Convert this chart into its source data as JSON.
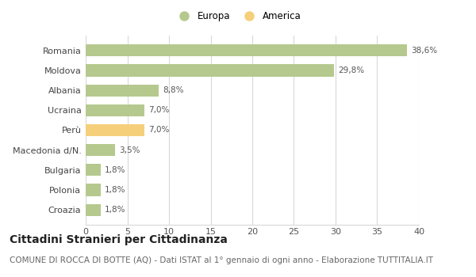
{
  "categories": [
    "Romania",
    "Moldova",
    "Albania",
    "Ucraina",
    "Perù",
    "Macedonia d/N.",
    "Bulgaria",
    "Polonia",
    "Croazia"
  ],
  "values": [
    38.6,
    29.8,
    8.8,
    7.0,
    7.0,
    3.5,
    1.8,
    1.8,
    1.8
  ],
  "colors": [
    "#b5c98e",
    "#b5c98e",
    "#b5c98e",
    "#b5c98e",
    "#f5cf7a",
    "#b5c98e",
    "#b5c98e",
    "#b5c98e",
    "#b5c98e"
  ],
  "labels": [
    "38,6%",
    "29,8%",
    "8,8%",
    "7,0%",
    "7,0%",
    "3,5%",
    "1,8%",
    "1,8%",
    "1,8%"
  ],
  "xlim": [
    0,
    40
  ],
  "xticks": [
    0,
    5,
    10,
    15,
    20,
    25,
    30,
    35,
    40
  ],
  "legend_europa_color": "#b5c98e",
  "legend_america_color": "#f5cf7a",
  "title": "Cittadini Stranieri per Cittadinanza",
  "subtitle": "COMUNE DI ROCCA DI BOTTE (AQ) - Dati ISTAT al 1° gennaio di ogni anno - Elaborazione TUTTITALIA.IT",
  "bg_color": "#ffffff",
  "grid_color": "#d8d8d8",
  "bar_height": 0.6,
  "title_fontsize": 10,
  "subtitle_fontsize": 7.5,
  "label_fontsize": 7.5,
  "tick_fontsize": 8,
  "legend_fontsize": 8.5
}
